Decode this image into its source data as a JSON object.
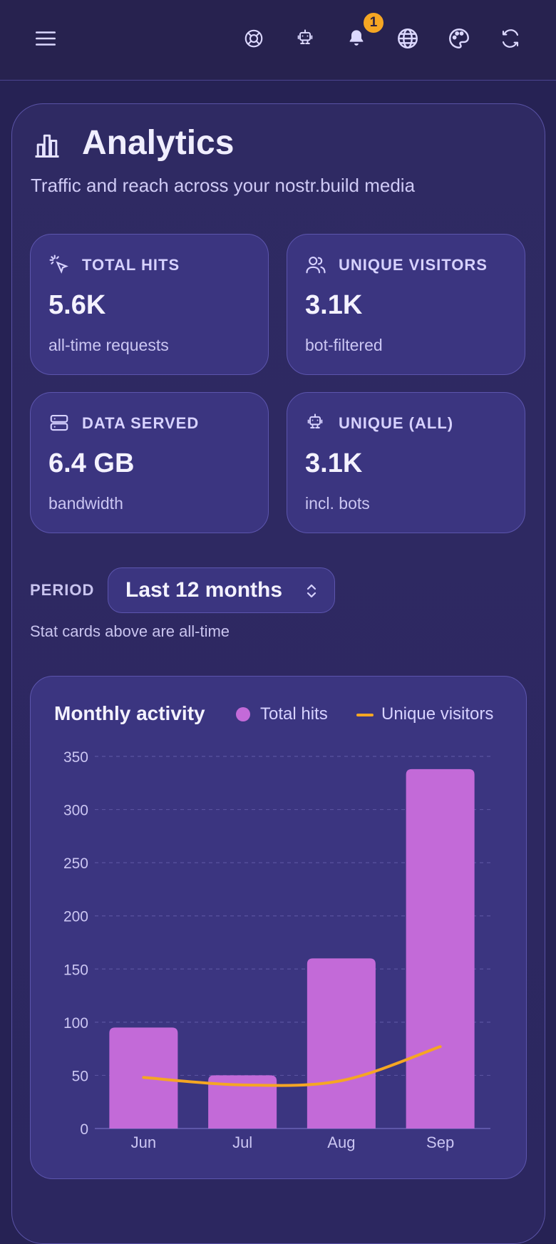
{
  "topbar": {
    "notifications_count": "1",
    "icons": [
      "menu-icon",
      "support-icon",
      "robot-icon",
      "bell-icon",
      "globe-icon",
      "palette-icon",
      "refresh-icon"
    ]
  },
  "header": {
    "title": "Analytics",
    "subtitle": "Traffic and reach across your nostr.build media"
  },
  "stats": [
    {
      "label": "TOTAL HITS",
      "value": "5.6K",
      "sub": "all-time requests",
      "icon": "cursor-click-icon"
    },
    {
      "label": "UNIQUE VISITORS",
      "value": "3.1K",
      "sub": "bot-filtered",
      "icon": "users-icon"
    },
    {
      "label": "DATA SERVED",
      "value": "6.4 GB",
      "sub": "bandwidth",
      "icon": "server-icon"
    },
    {
      "label": "UNIQUE (ALL)",
      "value": "3.1K",
      "sub": "incl. bots",
      "icon": "robot-icon"
    }
  ],
  "period": {
    "label": "PERIOD",
    "selected": "Last 12 months",
    "note": "Stat cards above are all-time"
  },
  "chart_data": {
    "type": "bar",
    "title": "Monthly activity",
    "categories": [
      "Jun",
      "Jul",
      "Aug",
      "Sep"
    ],
    "series": [
      {
        "name": "Total hits",
        "type": "bar",
        "values": [
          95,
          50,
          160,
          338
        ],
        "color": "#c36ad8"
      },
      {
        "name": "Unique visitors",
        "type": "line",
        "values": [
          48,
          41,
          45,
          77
        ],
        "color": "#f5a623"
      }
    ],
    "ylim": [
      0,
      350
    ],
    "yticks": [
      "0",
      "50",
      "100",
      "150",
      "200",
      "250",
      "300",
      "350"
    ],
    "grid": true,
    "legend": "top-right"
  }
}
